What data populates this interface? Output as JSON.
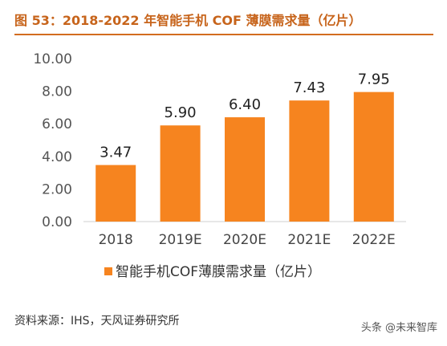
{
  "title": "图 53：2018-2022 年智能手机 COF 薄膜需求量（亿片）",
  "source": "资料来源：IHS，天风证券研究所",
  "watermark": "头条 @未来智库",
  "chart_data": {
    "type": "bar",
    "categories": [
      "2018",
      "2019E",
      "2020E",
      "2021E",
      "2022E"
    ],
    "series": [
      {
        "name": "智能手机COF薄膜需求量（亿片）",
        "values": [
          3.47,
          5.9,
          6.4,
          7.43,
          7.95
        ],
        "color": "#f6841f"
      }
    ],
    "data_labels": [
      "3.47",
      "5.90",
      "6.40",
      "7.43",
      "7.95"
    ],
    "y_ticks": [
      "0.00",
      "2.00",
      "4.00",
      "6.00",
      "8.00",
      "10.00"
    ],
    "ylim": [
      0,
      10
    ],
    "grid": false,
    "legend_position": "bottom"
  }
}
